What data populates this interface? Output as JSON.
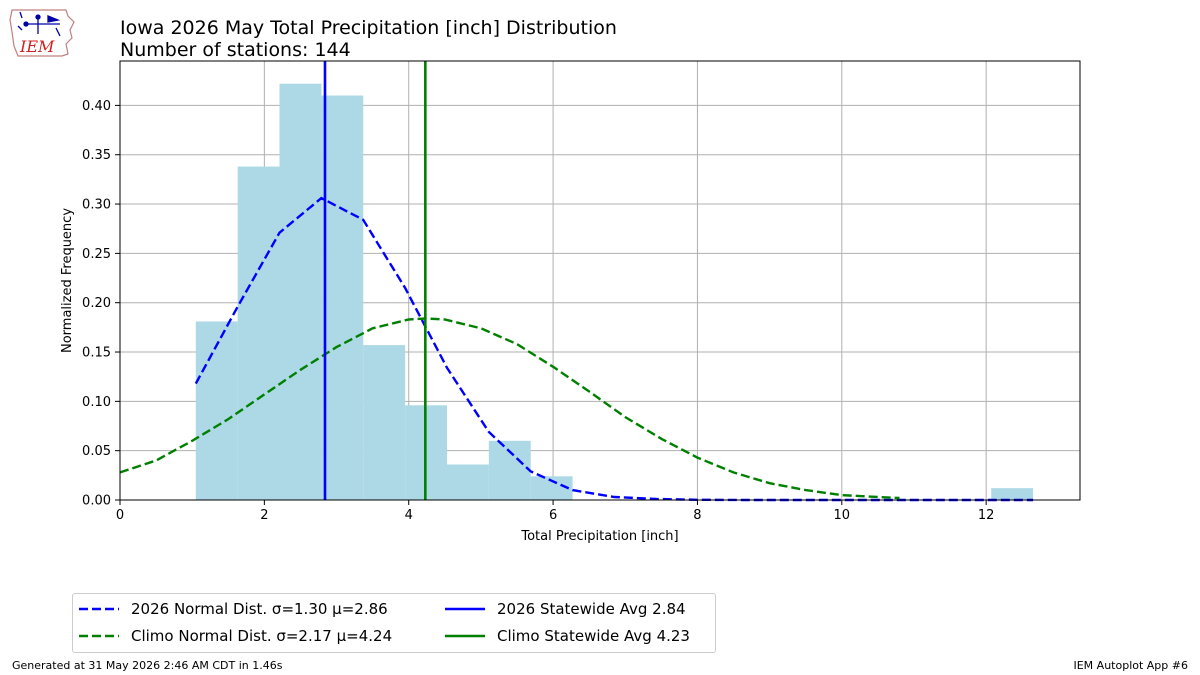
{
  "header": {
    "title": "Iowa 2026 May Total Precipitation [inch] Distribution",
    "subtitle": "Number of stations: 144"
  },
  "logo": {
    "text": "IEM",
    "icon": "iowa-state-outline-icon"
  },
  "footer": {
    "left": "Generated at 31 May 2026 2:46 AM CDT in 1.46s",
    "right": "IEM Autoplot App #6"
  },
  "legend": {
    "items": [
      {
        "label": "2026 Normal Dist. σ=1.30 μ=2.86",
        "color": "#0000ff",
        "style": "dashed"
      },
      {
        "label": "Climo Normal Dist. σ=2.17 μ=4.24",
        "color": "#008000",
        "style": "dashed"
      },
      {
        "label": "2026 Statewide Avg 2.84",
        "color": "#0000ff",
        "style": "solid"
      },
      {
        "label": "Climo Statewide Avg 4.23",
        "color": "#008000",
        "style": "solid"
      }
    ]
  },
  "chart_data": {
    "type": "bar",
    "title": "Iowa 2026 May Total Precipitation [inch] Distribution",
    "subtitle": "Number of stations: 144",
    "xlabel": "Total Precipitation [inch]",
    "ylabel": "Normalized Frequency",
    "xlim": [
      0,
      13.3
    ],
    "ylim": [
      0,
      0.445
    ],
    "xticks": [
      0,
      2,
      4,
      6,
      8,
      10,
      12
    ],
    "xtick_labels": [
      "0",
      "2",
      "4",
      "6",
      "8",
      "10",
      "12"
    ],
    "yticks": [
      0,
      0.05,
      0.1,
      0.15,
      0.2,
      0.25,
      0.3,
      0.35,
      0.4
    ],
    "ytick_labels": [
      "0.00",
      "0.05",
      "0.10",
      "0.15",
      "0.20",
      "0.25",
      "0.30",
      "0.35",
      "0.40"
    ],
    "grid": true,
    "legend_position": "below",
    "histogram": {
      "color": "#add8e6",
      "bin_edges": [
        1.05,
        1.63,
        2.21,
        2.79,
        3.37,
        3.95,
        4.53,
        5.11,
        5.69,
        6.27,
        6.85,
        7.43,
        8.01,
        8.59,
        9.17,
        9.75,
        10.33,
        10.91,
        11.49,
        12.07,
        12.65
      ],
      "values": [
        0.181,
        0.338,
        0.422,
        0.41,
        0.157,
        0.096,
        0.036,
        0.06,
        0.024,
        0,
        0,
        0,
        0,
        0,
        0,
        0,
        0,
        0,
        0,
        0.012
      ]
    },
    "series": [
      {
        "name": "2026 Normal Dist. σ=1.30 μ=2.86",
        "type": "line",
        "style": "dashed",
        "color": "#0000ff",
        "x": [
          1.05,
          1.63,
          2.21,
          2.79,
          3.37,
          3.95,
          4.53,
          5.11,
          5.69,
          6.27,
          6.85,
          7.43,
          8.01,
          8.59,
          9.17,
          9.75,
          10.33,
          10.91,
          11.49,
          12.07,
          12.65
        ],
        "y": [
          0.118,
          0.196,
          0.271,
          0.306,
          0.284,
          0.215,
          0.134,
          0.069,
          0.029,
          0.01,
          0.003,
          0.001,
          0.0002,
          0,
          0,
          0,
          0,
          0,
          0,
          0,
          0
        ]
      },
      {
        "name": "Climo Normal Dist. σ=2.17 μ=4.24",
        "type": "line",
        "style": "dashed",
        "color": "#008000",
        "x": [
          0,
          0.5,
          1,
          1.5,
          2,
          2.5,
          3,
          3.5,
          4,
          4.24,
          4.5,
          5,
          5.5,
          6,
          6.5,
          7,
          7.5,
          8,
          8.5,
          9,
          9.5,
          10,
          10.5,
          10.8
        ],
        "y": [
          0.028,
          0.04,
          0.06,
          0.082,
          0.107,
          0.132,
          0.155,
          0.174,
          0.183,
          0.184,
          0.183,
          0.174,
          0.158,
          0.135,
          0.11,
          0.084,
          0.062,
          0.043,
          0.028,
          0.017,
          0.01,
          0.005,
          0.003,
          0.002
        ]
      }
    ],
    "vlines": [
      {
        "name": "2026 Statewide Avg 2.84",
        "x": 2.84,
        "color": "#0000ff"
      },
      {
        "name": "Climo Statewide Avg 4.23",
        "x": 4.23,
        "color": "#008000"
      }
    ]
  }
}
